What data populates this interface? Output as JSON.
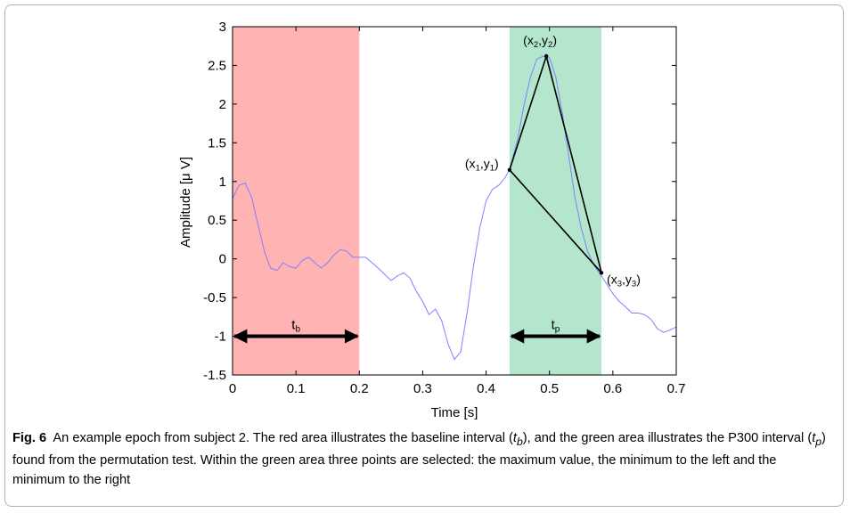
{
  "chart_data": {
    "type": "line",
    "xlabel": "Time [s]",
    "ylabel": "Amplitude [μ V]",
    "xlim": [
      0,
      0.7
    ],
    "ylim": [
      -1.5,
      3
    ],
    "xticks": [
      0,
      0.1,
      0.2,
      0.3,
      0.4,
      0.5,
      0.6,
      0.7
    ],
    "xtick_labels": [
      "0",
      "0.1",
      "0.2",
      "0.3",
      "0.4",
      "0.5",
      "0.6",
      "0.7"
    ],
    "yticks": [
      -1.5,
      -1,
      -0.5,
      0,
      0.5,
      1,
      1.5,
      2,
      2.5,
      3
    ],
    "ytick_labels": [
      "-1.5",
      "-1",
      "-0.5",
      "0",
      "0.5",
      "1",
      "1.5",
      "2",
      "2.5",
      "3"
    ],
    "grid": false,
    "series": [
      {
        "color": "#8080ff",
        "x": [
          0,
          0.01,
          0.02,
          0.03,
          0.04,
          0.05,
          0.06,
          0.07,
          0.08,
          0.09,
          0.1,
          0.11,
          0.12,
          0.13,
          0.14,
          0.15,
          0.16,
          0.17,
          0.18,
          0.19,
          0.2,
          0.21,
          0.22,
          0.23,
          0.24,
          0.25,
          0.26,
          0.27,
          0.28,
          0.29,
          0.3,
          0.31,
          0.32,
          0.33,
          0.34,
          0.35,
          0.36,
          0.37,
          0.38,
          0.39,
          0.4,
          0.41,
          0.42,
          0.43,
          0.437,
          0.45,
          0.46,
          0.47,
          0.48,
          0.49,
          0.495,
          0.5,
          0.51,
          0.52,
          0.53,
          0.54,
          0.55,
          0.56,
          0.57,
          0.58,
          0.59,
          0.6,
          0.61,
          0.62,
          0.63,
          0.64,
          0.65,
          0.66,
          0.67,
          0.68,
          0.69,
          0.7
        ],
        "y": [
          0.78,
          0.95,
          0.98,
          0.8,
          0.45,
          0.1,
          -0.12,
          -0.15,
          -0.05,
          -0.1,
          -0.12,
          -0.02,
          0.02,
          -0.05,
          -0.12,
          -0.05,
          0.05,
          0.12,
          0.1,
          0.02,
          0.02,
          0.02,
          -0.05,
          -0.12,
          -0.2,
          -0.28,
          -0.22,
          -0.18,
          -0.25,
          -0.42,
          -0.55,
          -0.72,
          -0.65,
          -0.8,
          -1.1,
          -1.3,
          -1.2,
          -0.7,
          -0.1,
          0.4,
          0.75,
          0.9,
          0.95,
          1.05,
          1.15,
          1.55,
          2.0,
          2.35,
          2.58,
          2.62,
          2.62,
          2.6,
          2.35,
          1.9,
          1.35,
          0.8,
          0.4,
          0.1,
          -0.08,
          -0.2,
          -0.32,
          -0.45,
          -0.55,
          -0.62,
          -0.7,
          -0.7,
          -0.72,
          -0.78,
          -0.9,
          -0.95,
          -0.92,
          -0.88
        ]
      }
    ],
    "regions": [
      {
        "x_start": 0,
        "x_end": 0.2,
        "color": "#ffb3b3",
        "label": "t",
        "label_sub": "b"
      },
      {
        "x_start": 0.437,
        "x_end": 0.582,
        "color": "#b3e6cc",
        "label": "t",
        "label_sub": "p"
      }
    ],
    "arrow_y": -1,
    "points": [
      {
        "x": 0.437,
        "y": 1.15,
        "label": "(x",
        "sub1": "1",
        "mid": ",y",
        "sub2": "1",
        "end": ")"
      },
      {
        "x": 0.495,
        "y": 2.62,
        "label": "(x",
        "sub1": "2",
        "mid": ",y",
        "sub2": "2",
        "end": ")"
      },
      {
        "x": 0.582,
        "y": -0.18,
        "label": "(x",
        "sub1": "3",
        "mid": ",y",
        "sub2": "3",
        "end": ")"
      }
    ]
  },
  "caption": {
    "label": "Fig. 6",
    "text_1": "An example epoch from subject 2. The red area illustrates the baseline interval (",
    "sym_b": "t",
    "sub_b": "b",
    "text_2": "), and the green area illustrates the P300 interval (",
    "sym_p": "t",
    "sub_p": "p",
    "text_3": ") found from the permutation test. Within the green area three points are selected: the maximum value, the minimum to the left and the minimum to the right"
  }
}
